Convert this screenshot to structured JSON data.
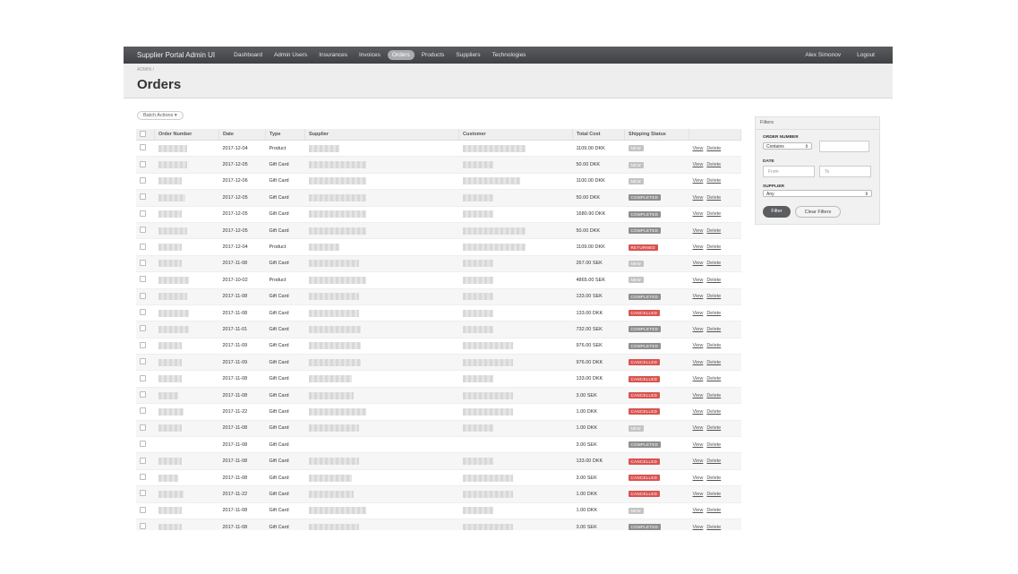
{
  "app": {
    "title": "Supplier Portal Admin UI"
  },
  "nav": [
    "Dashboard",
    "Admin Users",
    "Insurances",
    "Invoices",
    "Orders",
    "Products",
    "Suppliers",
    "Technologies"
  ],
  "user": {
    "name": "Alex Simonov",
    "logout": "Logout"
  },
  "breadcrumb": "ADMIN /",
  "page_title": "Orders",
  "batch_actions": "Batch Actions ▾",
  "table": {
    "headers": [
      "Order Number",
      "Date",
      "Type",
      "Supplier",
      "Customer",
      "Total Cost",
      "Shipping Status"
    ],
    "view_label": "View",
    "delete_label": "Delete",
    "rows": [
      {
        "date": "2017-12-04",
        "type": "Product",
        "cost": "1109.00 DKK",
        "status": "NEW"
      },
      {
        "date": "2017-12-05",
        "type": "Gift Card",
        "cost": "50.00 DKK",
        "status": "NEW"
      },
      {
        "date": "2017-12-06",
        "type": "Gift Card",
        "cost": "1100.00 DKK",
        "status": "NEW"
      },
      {
        "date": "2017-12-05",
        "type": "Gift Card",
        "cost": "50.00 DKK",
        "status": "COMPLETED"
      },
      {
        "date": "2017-12-05",
        "type": "Gift Card",
        "cost": "1680.90 DKK",
        "status": "COMPLETED"
      },
      {
        "date": "2017-12-05",
        "type": "Gift Card",
        "cost": "50.00 DKK",
        "status": "COMPLETED"
      },
      {
        "date": "2017-12-04",
        "type": "Product",
        "cost": "1109.00 DKK",
        "status": "RETURNED"
      },
      {
        "date": "2017-11-08",
        "type": "Gift Card",
        "cost": "267.00 SEK",
        "status": "NEW"
      },
      {
        "date": "2017-10-02",
        "type": "Product",
        "cost": "4865.00 SEK",
        "status": "NEW"
      },
      {
        "date": "2017-11-08",
        "type": "Gift Card",
        "cost": "133.00 SEK",
        "status": "COMPLETED"
      },
      {
        "date": "2017-11-08",
        "type": "Gift Card",
        "cost": "133.00 DKK",
        "status": "CANCELLED"
      },
      {
        "date": "2017-11-01",
        "type": "Gift Card",
        "cost": "732.00 SEK",
        "status": "COMPLETED"
      },
      {
        "date": "2017-11-09",
        "type": "Gift Card",
        "cost": "976.00 SEK",
        "status": "COMPLETED"
      },
      {
        "date": "2017-11-09",
        "type": "Gift Card",
        "cost": "976.00 DKK",
        "status": "CANCELLED"
      },
      {
        "date": "2017-11-08",
        "type": "Gift Card",
        "cost": "133.00 DKK",
        "status": "CANCELLED"
      },
      {
        "date": "2017-11-08",
        "type": "Gift Card",
        "cost": "3.00 SEK",
        "status": "CANCELLED"
      },
      {
        "date": "2017-11-22",
        "type": "Gift Card",
        "cost": "1.00 DKK",
        "status": "CANCELLED"
      },
      {
        "date": "2017-11-08",
        "type": "Gift Card",
        "cost": "1.00 DKK",
        "status": "NEW"
      },
      {
        "date": "2017-11-08",
        "type": "Gift Card",
        "cost": "3.00 SEK",
        "status": "COMPLETED"
      },
      {
        "date": "2017-11-08",
        "type": "Gift Card",
        "cost": "133.00 DKK",
        "status": "CANCELLED"
      },
      {
        "date": "2017-11-08",
        "type": "Gift Card",
        "cost": "3.00 SEK",
        "status": "CANCELLED"
      },
      {
        "date": "2017-11-22",
        "type": "Gift Card",
        "cost": "1.00 DKK",
        "status": "CANCELLED"
      },
      {
        "date": "2017-11-08",
        "type": "Gift Card",
        "cost": "1.00 DKK",
        "status": "NEW"
      },
      {
        "date": "2017-11-08",
        "type": "Gift Card",
        "cost": "3.00 SEK",
        "status": "COMPLETED"
      }
    ]
  },
  "status_colors": {
    "NEW": "#c3c3c3",
    "COMPLETED": "#8e8e8e",
    "RETURNED": "#d9534f",
    "CANCELLED": "#d9534f"
  },
  "filters": {
    "title": "Filters",
    "order_number_label": "ORDER NUMBER",
    "order_number_mode": "Contains",
    "date_label": "DATE",
    "date_from_placeholder": "From",
    "date_to_placeholder": "To",
    "supplier_label": "SUPPLIER",
    "supplier_value": "Any",
    "filter_button": "Filter",
    "clear_button": "Clear Filters"
  }
}
